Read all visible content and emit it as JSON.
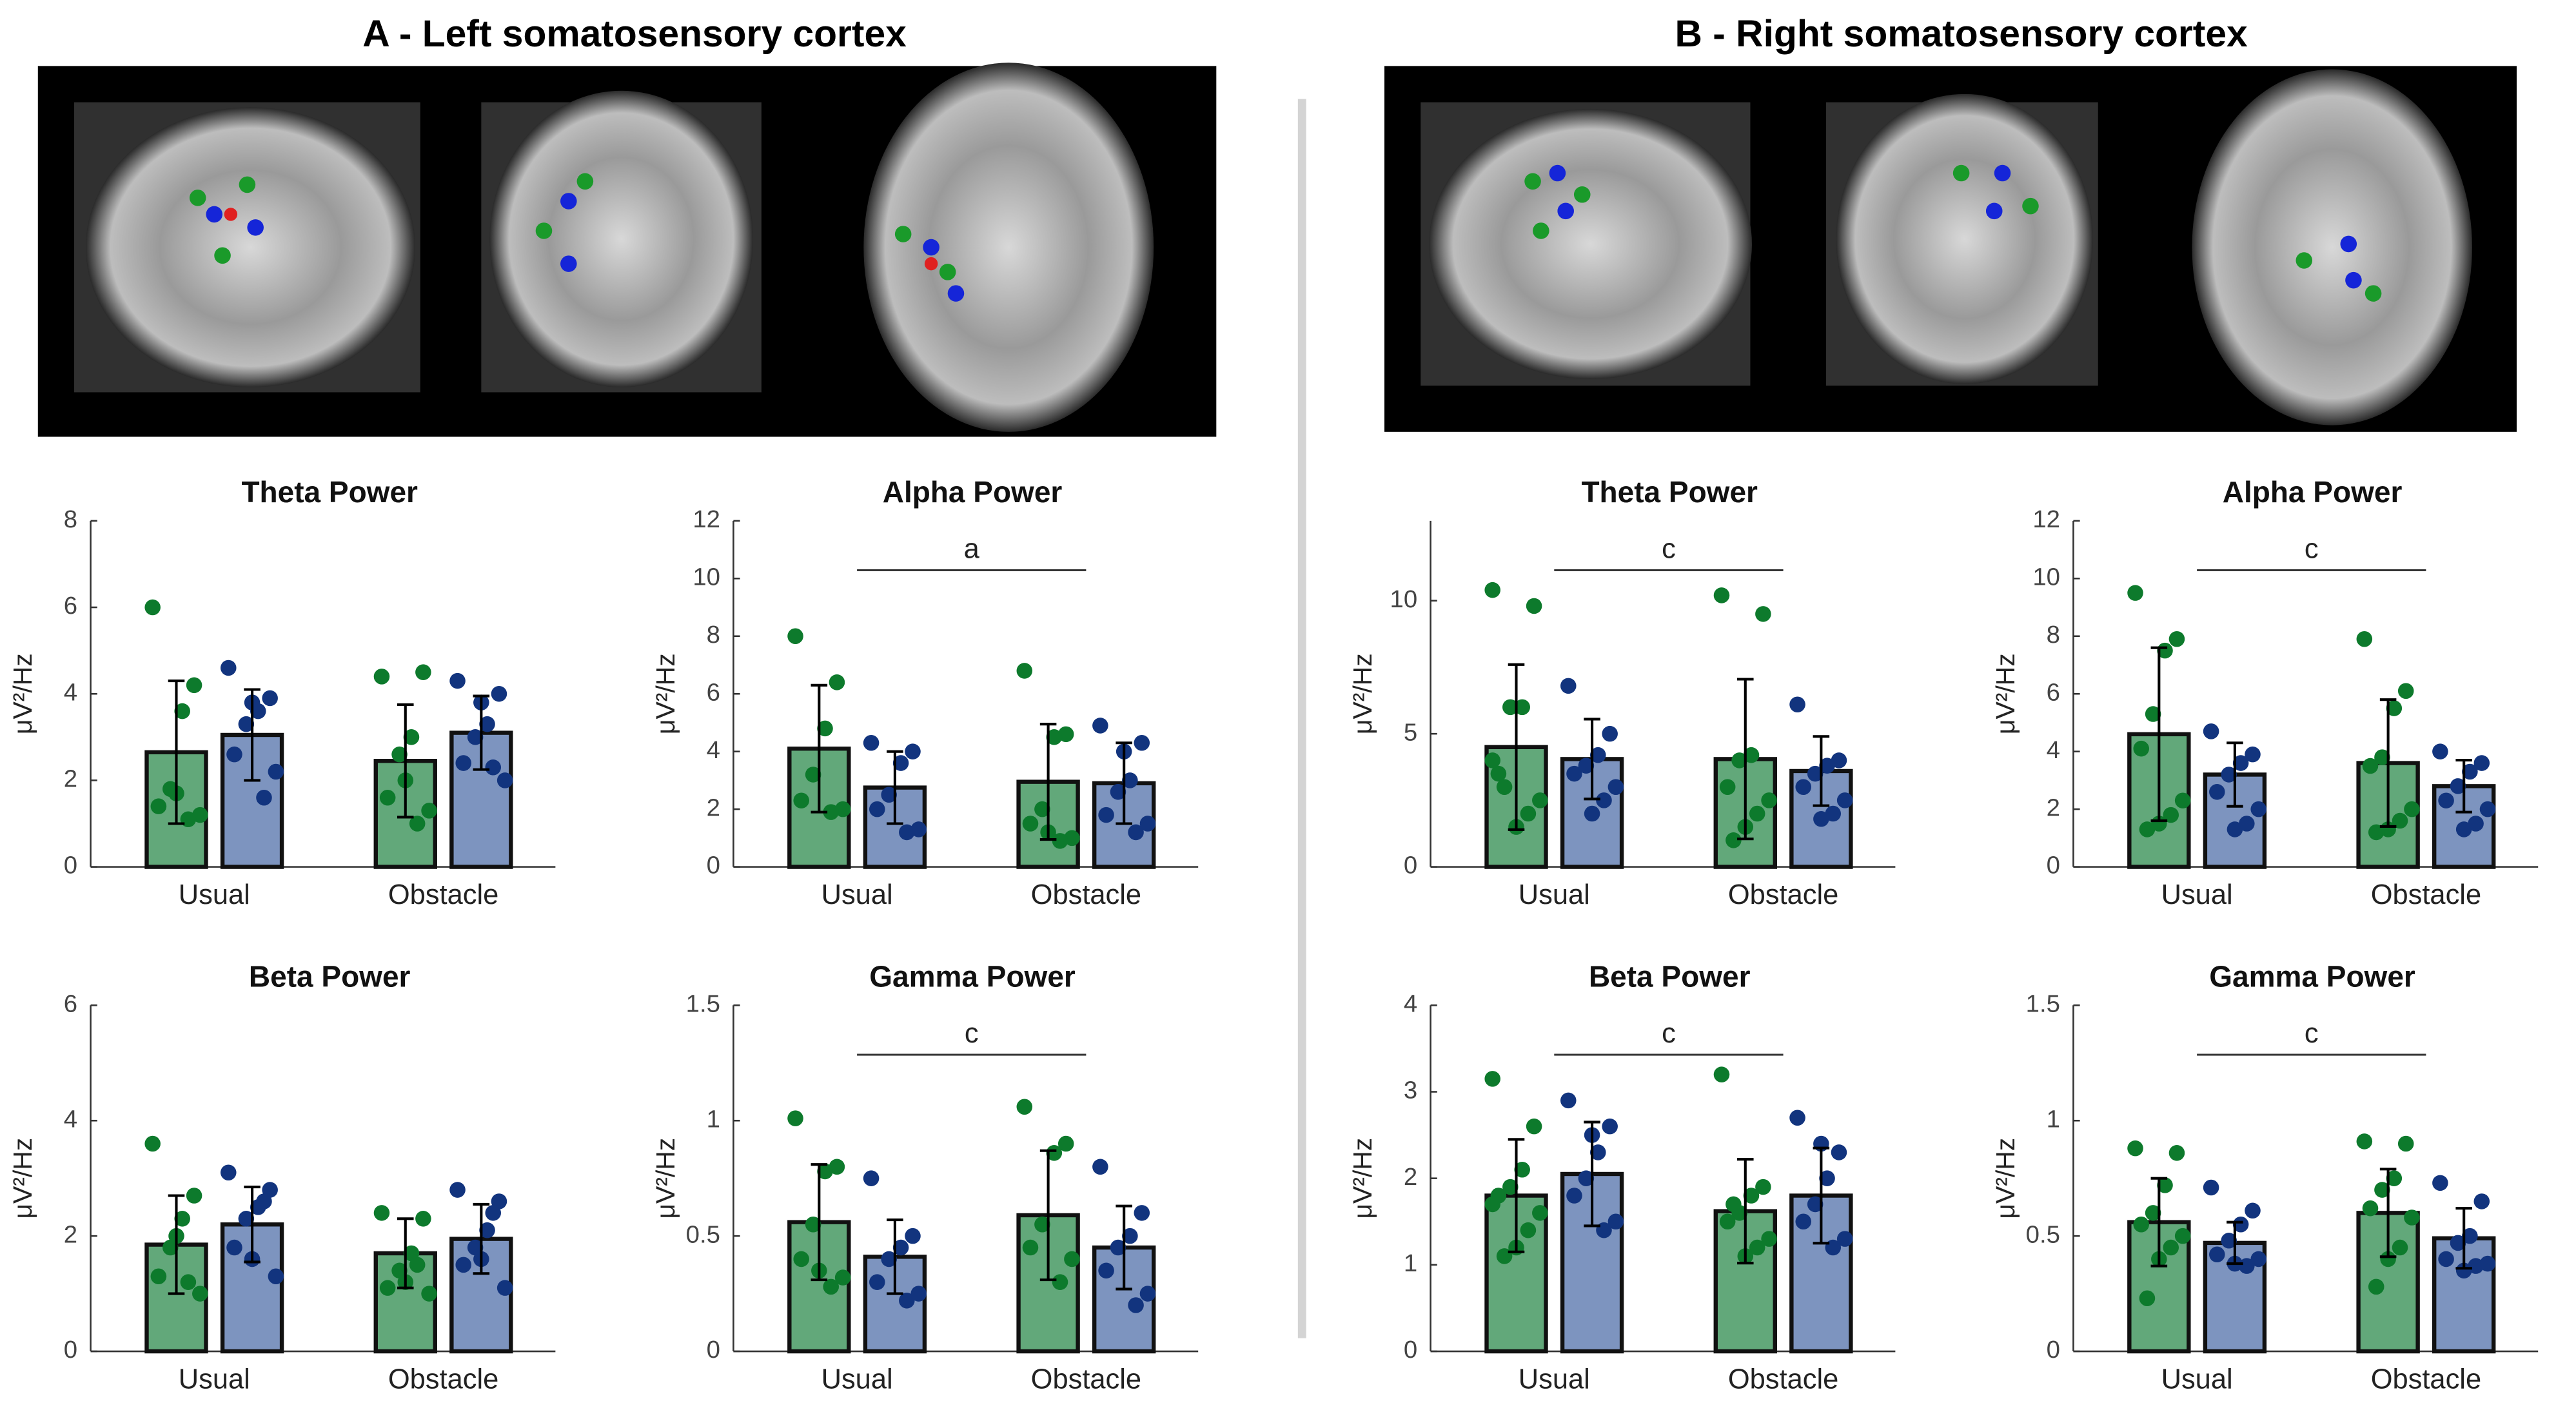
{
  "panels": [
    {
      "title": "A - Left somatosensory cortex"
    },
    {
      "title": "B - Right somatosensory cortex"
    }
  ],
  "chart_data": [
    {
      "type": "bar",
      "title": "Theta Power",
      "ylabel": "μV²/Hz",
      "categories": [
        "Usual",
        "Obstacle"
      ],
      "ylim": [
        0,
        8
      ],
      "yticks": [
        0,
        2,
        4,
        6,
        8
      ],
      "series": [
        {
          "color": "#62a87a",
          "point_color": "#0d7a2c",
          "values": [
            2.65,
            2.45
          ],
          "errors": [
            1.65,
            1.3
          ],
          "points": [
            [
              6.0,
              4.2,
              3.6,
              1.8,
              1.4,
              1.2,
              1.1,
              1.7
            ],
            [
              4.4,
              4.5,
              3.0,
              2.6,
              1.6,
              1.3,
              1.0,
              2.0
            ]
          ]
        },
        {
          "color": "#7d94bf",
          "point_color": "#12347e",
          "values": [
            3.05,
            3.1
          ],
          "errors": [
            1.05,
            0.85
          ],
          "points": [
            [
              4.6,
              3.9,
              3.6,
              3.3,
              2.6,
              2.2,
              1.6,
              3.8
            ],
            [
              4.3,
              4.0,
              3.3,
              3.0,
              2.4,
              2.0,
              2.3,
              3.8
            ]
          ]
        }
      ]
    },
    {
      "type": "bar",
      "title": "Alpha Power",
      "ylabel": "μV²/Hz",
      "categories": [
        "Usual",
        "Obstacle"
      ],
      "ylim": [
        0,
        12
      ],
      "yticks": [
        0,
        2,
        4,
        6,
        8,
        10,
        12
      ],
      "annotation": "a",
      "series": [
        {
          "color": "#62a87a",
          "point_color": "#0d7a2c",
          "values": [
            4.1,
            2.95
          ],
          "errors": [
            2.2,
            2.0
          ],
          "points": [
            [
              8.0,
              6.4,
              4.8,
              3.2,
              2.3,
              2.0,
              1.9
            ],
            [
              6.8,
              4.6,
              4.5,
              2.0,
              1.5,
              1.0,
              0.9,
              1.2
            ]
          ]
        },
        {
          "color": "#7d94bf",
          "point_color": "#12347e",
          "values": [
            2.75,
            2.9
          ],
          "errors": [
            1.25,
            1.4
          ],
          "points": [
            [
              4.3,
              4.0,
              3.6,
              2.5,
              2.0,
              1.3,
              1.2
            ],
            [
              4.9,
              4.3,
              3.0,
              2.6,
              1.8,
              1.5,
              1.2,
              4.0
            ]
          ]
        }
      ]
    },
    {
      "type": "bar",
      "title": "Beta Power",
      "ylabel": "μV²/Hz",
      "categories": [
        "Usual",
        "Obstacle"
      ],
      "ylim": [
        0,
        6
      ],
      "yticks": [
        0,
        2,
        4,
        6
      ],
      "series": [
        {
          "color": "#62a87a",
          "point_color": "#0d7a2c",
          "values": [
            1.85,
            1.7
          ],
          "errors": [
            0.85,
            0.6
          ],
          "points": [
            [
              3.6,
              2.7,
              2.3,
              1.8,
              1.3,
              1.0,
              1.2,
              2.0
            ],
            [
              2.4,
              2.3,
              1.7,
              1.4,
              1.1,
              1.0,
              1.5,
              1.2
            ]
          ]
        },
        {
          "color": "#7d94bf",
          "point_color": "#12347e",
          "values": [
            2.2,
            1.95
          ],
          "errors": [
            0.65,
            0.6
          ],
          "points": [
            [
              3.1,
              2.8,
              2.5,
              2.3,
              1.8,
              1.3,
              2.6,
              1.6
            ],
            [
              2.8,
              2.6,
              2.1,
              1.8,
              1.5,
              1.1,
              2.4,
              1.6
            ]
          ]
        }
      ]
    },
    {
      "type": "bar",
      "title": "Gamma Power",
      "ylabel": "μV²/Hz",
      "categories": [
        "Usual",
        "Obstacle"
      ],
      "ylim": [
        0,
        1.5
      ],
      "yticks": [
        0,
        0.5,
        1,
        1.5
      ],
      "annotation": "c",
      "series": [
        {
          "color": "#62a87a",
          "point_color": "#0d7a2c",
          "values": [
            0.56,
            0.59
          ],
          "errors": [
            0.25,
            0.28
          ],
          "points": [
            [
              1.01,
              0.8,
              0.78,
              0.55,
              0.4,
              0.32,
              0.28,
              0.35
            ],
            [
              1.06,
              0.9,
              0.86,
              0.55,
              0.45,
              0.4,
              0.3
            ]
          ]
        },
        {
          "color": "#7d94bf",
          "point_color": "#12347e",
          "values": [
            0.41,
            0.45
          ],
          "errors": [
            0.16,
            0.18
          ],
          "points": [
            [
              0.75,
              0.5,
              0.45,
              0.4,
              0.3,
              0.25,
              0.22
            ],
            [
              0.8,
              0.6,
              0.5,
              0.45,
              0.35,
              0.25,
              0.2
            ]
          ]
        }
      ]
    },
    {
      "type": "bar",
      "title": "Theta Power",
      "ylabel": "μV²/Hz",
      "categories": [
        "Usual",
        "Obstacle"
      ],
      "ylim": [
        0,
        13
      ],
      "yticks": [
        0,
        5,
        10
      ],
      "annotation": "c",
      "series": [
        {
          "color": "#62a87a",
          "point_color": "#0d7a2c",
          "values": [
            4.5,
            4.05
          ],
          "errors": [
            3.1,
            3.0
          ],
          "points": [
            [
              10.4,
              9.8,
              6.0,
              6.0,
              3.5,
              2.5,
              2.0,
              1.5,
              3.0,
              4.0
            ],
            [
              10.2,
              9.5,
              4.2,
              4.0,
              3.0,
              2.5,
              2.0,
              1.5,
              1.0
            ]
          ]
        },
        {
          "color": "#7d94bf",
          "point_color": "#12347e",
          "values": [
            4.05,
            3.6
          ],
          "errors": [
            1.5,
            1.3
          ],
          "points": [
            [
              6.8,
              5.0,
              4.2,
              3.8,
              3.5,
              3.0,
              2.5,
              2.0
            ],
            [
              6.1,
              4.0,
              3.8,
              3.5,
              3.0,
              2.5,
              2.0,
              1.8
            ]
          ]
        }
      ]
    },
    {
      "type": "bar",
      "title": "Alpha Power",
      "ylabel": "μV²/Hz",
      "categories": [
        "Usual",
        "Obstacle"
      ],
      "ylim": [
        0,
        12
      ],
      "yticks": [
        0,
        2,
        4,
        6,
        8,
        10,
        12
      ],
      "annotation": "c",
      "series": [
        {
          "color": "#62a87a",
          "point_color": "#0d7a2c",
          "values": [
            4.6,
            3.6
          ],
          "errors": [
            3.0,
            2.2
          ],
          "points": [
            [
              9.5,
              7.9,
              7.5,
              5.3,
              4.1,
              2.3,
              1.8,
              1.5,
              1.3
            ],
            [
              7.9,
              6.1,
              5.5,
              3.8,
              3.5,
              2.0,
              1.6,
              1.3,
              1.2
            ]
          ]
        },
        {
          "color": "#7d94bf",
          "point_color": "#12347e",
          "values": [
            3.2,
            2.8
          ],
          "errors": [
            1.1,
            0.9
          ],
          "points": [
            [
              4.7,
              3.9,
              3.6,
              3.2,
              2.6,
              2.0,
              1.5,
              1.3
            ],
            [
              4.0,
              3.6,
              3.3,
              2.8,
              2.3,
              2.0,
              1.5,
              1.3
            ]
          ]
        }
      ]
    },
    {
      "type": "bar",
      "title": "Beta Power",
      "ylabel": "μV²/Hz",
      "categories": [
        "Usual",
        "Obstacle"
      ],
      "ylim": [
        0,
        4
      ],
      "yticks": [
        0,
        1,
        2,
        3,
        4
      ],
      "annotation": "c",
      "series": [
        {
          "color": "#62a87a",
          "point_color": "#0d7a2c",
          "values": [
            1.8,
            1.62
          ],
          "errors": [
            0.65,
            0.6
          ],
          "points": [
            [
              3.15,
              2.6,
              2.1,
              1.9,
              1.8,
              1.6,
              1.4,
              1.2,
              1.1,
              1.7
            ],
            [
              3.2,
              1.9,
              1.8,
              1.6,
              1.5,
              1.3,
              1.2,
              1.1,
              1.7
            ]
          ]
        },
        {
          "color": "#7d94bf",
          "point_color": "#12347e",
          "values": [
            2.05,
            1.8
          ],
          "errors": [
            0.6,
            0.55
          ],
          "points": [
            [
              2.9,
              2.6,
              2.3,
              2.0,
              1.8,
              1.5,
              1.4,
              2.5
            ],
            [
              2.7,
              2.3,
              2.0,
              1.7,
              1.5,
              1.3,
              1.2,
              2.4
            ]
          ]
        }
      ]
    },
    {
      "type": "bar",
      "title": "Gamma Power",
      "ylabel": "μV²/Hz",
      "categories": [
        "Usual",
        "Obstacle"
      ],
      "ylim": [
        0,
        1.5
      ],
      "yticks": [
        0,
        0.5,
        1,
        1.5
      ],
      "annotation": "c",
      "series": [
        {
          "color": "#62a87a",
          "point_color": "#0d7a2c",
          "values": [
            0.56,
            0.6
          ],
          "errors": [
            0.19,
            0.19
          ],
          "points": [
            [
              0.88,
              0.86,
              0.72,
              0.6,
              0.55,
              0.5,
              0.45,
              0.4,
              0.23
            ],
            [
              0.91,
              0.9,
              0.75,
              0.7,
              0.62,
              0.58,
              0.45,
              0.4,
              0.28
            ]
          ]
        },
        {
          "color": "#7d94bf",
          "point_color": "#12347e",
          "values": [
            0.47,
            0.49
          ],
          "errors": [
            0.09,
            0.13
          ],
          "points": [
            [
              0.71,
              0.61,
              0.55,
              0.48,
              0.42,
              0.4,
              0.37,
              0.38
            ],
            [
              0.73,
              0.65,
              0.5,
              0.47,
              0.4,
              0.38,
              0.37,
              0.35
            ]
          ]
        }
      ]
    }
  ]
}
